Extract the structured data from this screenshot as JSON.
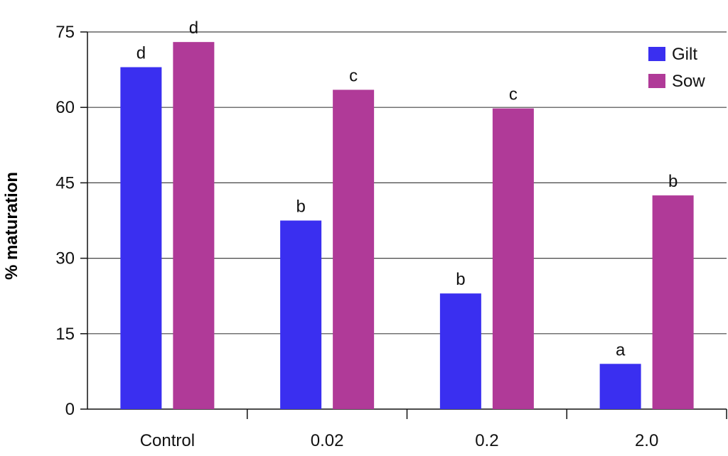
{
  "chart_data": {
    "type": "bar",
    "title": "",
    "xlabel": "",
    "ylabel": "% maturation",
    "ylim": [
      0,
      75
    ],
    "yticks": [
      0,
      15,
      30,
      45,
      60,
      75
    ],
    "categories": [
      "Control",
      "0.02",
      "0.2",
      "2.0"
    ],
    "series": [
      {
        "name": "Gilt",
        "color": "#3a2ff0",
        "values": [
          68,
          37.5,
          23,
          9
        ],
        "labels": [
          "d",
          "b",
          "b",
          "a"
        ]
      },
      {
        "name": "Sow",
        "color": "#b03a98",
        "values": [
          73,
          63.5,
          59.8,
          42.5
        ],
        "labels": [
          "d",
          "c",
          "c",
          "b"
        ]
      }
    ],
    "grid": true,
    "legend": "top-right"
  }
}
